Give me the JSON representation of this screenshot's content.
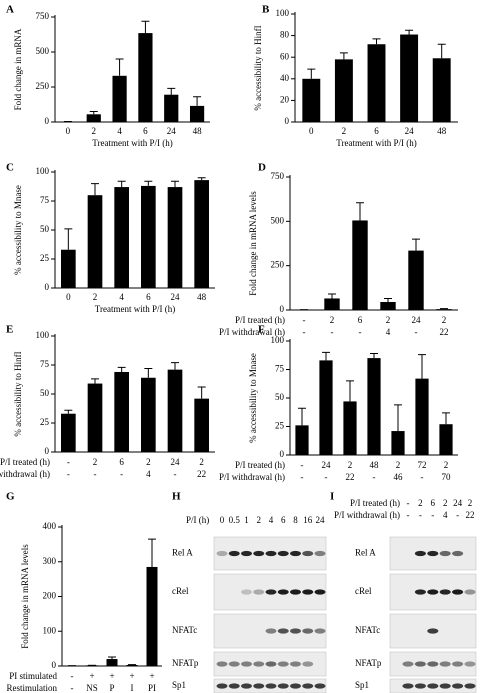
{
  "chart_data": [
    {
      "type": "bar",
      "label": "A",
      "ylabel": "Fold change in mRNA",
      "xlabel": "Treatment with P/I (h)",
      "color": "#000000",
      "categories": [
        "0",
        "2",
        "4",
        "6",
        "24",
        "48"
      ],
      "values": [
        2,
        55,
        330,
        635,
        195,
        115
      ],
      "errors": [
        2,
        20,
        120,
        85,
        45,
        65
      ],
      "ylim": [
        0,
        750
      ],
      "yticks": [
        0,
        250,
        500,
        750
      ]
    },
    {
      "type": "bar",
      "label": "B",
      "ylabel": "% accessibility to HinfI",
      "xlabel": "Treatment with P/I (h)",
      "color": "#000000",
      "categories": [
        "0",
        "2",
        "6",
        "24",
        "48"
      ],
      "values": [
        40,
        58,
        72,
        81,
        59
      ],
      "errors": [
        9,
        6,
        5,
        4,
        13
      ],
      "ylim": [
        0,
        100
      ],
      "yticks": [
        0,
        20,
        40,
        60,
        80,
        100
      ]
    },
    {
      "type": "bar",
      "label": "C",
      "ylabel": "% accessibility to Mnase",
      "xlabel": "Treatment with P/I (h)",
      "color": "#000000",
      "categories": [
        "0",
        "2",
        "4",
        "6",
        "24",
        "48"
      ],
      "values": [
        33,
        80,
        87,
        88,
        87,
        93
      ],
      "errors": [
        18,
        10,
        5,
        4,
        5,
        2
      ],
      "ylim": [
        0,
        100
      ],
      "yticks": [
        0,
        25,
        50,
        75,
        100
      ]
    },
    {
      "type": "bar",
      "label": "D",
      "ylabel": "Fold change in mRNA levels",
      "color": "#000000",
      "category_rows": [
        {
          "name": "P/I treated (h)",
          "labels": [
            "-",
            "2",
            "6",
            "2",
            "24",
            "2"
          ]
        },
        {
          "name": "P/I withdrawal (h)",
          "labels": [
            "-",
            "-",
            "-",
            "4",
            "-",
            "22"
          ]
        }
      ],
      "values": [
        2,
        65,
        505,
        45,
        335,
        5
      ],
      "errors": [
        0,
        25,
        100,
        20,
        65,
        3
      ],
      "ylim": [
        0,
        750
      ],
      "yticks": [
        0,
        250,
        500,
        750
      ]
    },
    {
      "type": "bar",
      "label": "E",
      "ylabel": "% accessibility to HinfI",
      "color": "#000000",
      "category_rows": [
        {
          "name": "P/I treated (h)",
          "labels": [
            "-",
            "2",
            "6",
            "2",
            "24",
            "2"
          ]
        },
        {
          "name": "P/I withdrawal (h)",
          "labels": [
            "-",
            "-",
            "-",
            "4",
            "-",
            "22"
          ]
        }
      ],
      "values": [
        33,
        59,
        69,
        64,
        71,
        46
      ],
      "errors": [
        3,
        4,
        4,
        8,
        6,
        10
      ],
      "ylim": [
        0,
        100
      ],
      "yticks": [
        0,
        25,
        50,
        75,
        100
      ]
    },
    {
      "type": "bar",
      "label": "F",
      "ylabel": "% accessibility to Mnase",
      "color": "#000000",
      "category_rows": [
        {
          "name": "P/I treated (h)",
          "labels": [
            "-",
            "24",
            "2",
            "48",
            "2",
            "72",
            "2"
          ]
        },
        {
          "name": "P/I withdrawal (h)",
          "labels": [
            "-",
            "-",
            "22",
            "-",
            "46",
            "-",
            "70"
          ]
        }
      ],
      "values": [
        26,
        83,
        47,
        85,
        21,
        67,
        27
      ],
      "errors": [
        15,
        7,
        18,
        4,
        23,
        21,
        10
      ],
      "ylim": [
        0,
        100
      ],
      "yticks": [
        0,
        25,
        50,
        75,
        100
      ]
    },
    {
      "type": "bar",
      "label": "G",
      "ylabel": "Fold change in mRNA levels",
      "color": "#000000",
      "category_rows": [
        {
          "name": "PI  stimulated",
          "labels": [
            "-",
            "+",
            "+",
            "+",
            "+"
          ]
        },
        {
          "name": "Restimulation",
          "labels": [
            "-",
            "NS",
            "P",
            "I",
            "PI"
          ]
        }
      ],
      "values": [
        1,
        2,
        20,
        3,
        285
      ],
      "errors": [
        0,
        0,
        6,
        1,
        80
      ],
      "ylim": [
        0,
        400
      ],
      "yticks": [
        0,
        100,
        200,
        300,
        400
      ]
    }
  ],
  "blots": [
    {
      "label": "H",
      "lane_header": [
        {
          "name": "P/I (h)",
          "labels": [
            "0",
            "0.5",
            "1",
            "2",
            "4",
            "6",
            "8",
            "16",
            "24"
          ]
        }
      ],
      "rows": [
        "Rel A",
        "cRel",
        "NFATc",
        "NFATp",
        "Sp1"
      ]
    },
    {
      "label": "I",
      "lane_header": [
        {
          "name": "P/I treated (h)",
          "labels": [
            "-",
            "2",
            "6",
            "2",
            "24",
            "2"
          ]
        },
        {
          "name": "P/I withdrawal (h)",
          "labels": [
            "-",
            "-",
            "-",
            "4",
            "-",
            "22"
          ]
        }
      ],
      "rows": [
        "Rel A",
        "cRel",
        "NFATc",
        "NFATp",
        "Sp1"
      ]
    }
  ]
}
